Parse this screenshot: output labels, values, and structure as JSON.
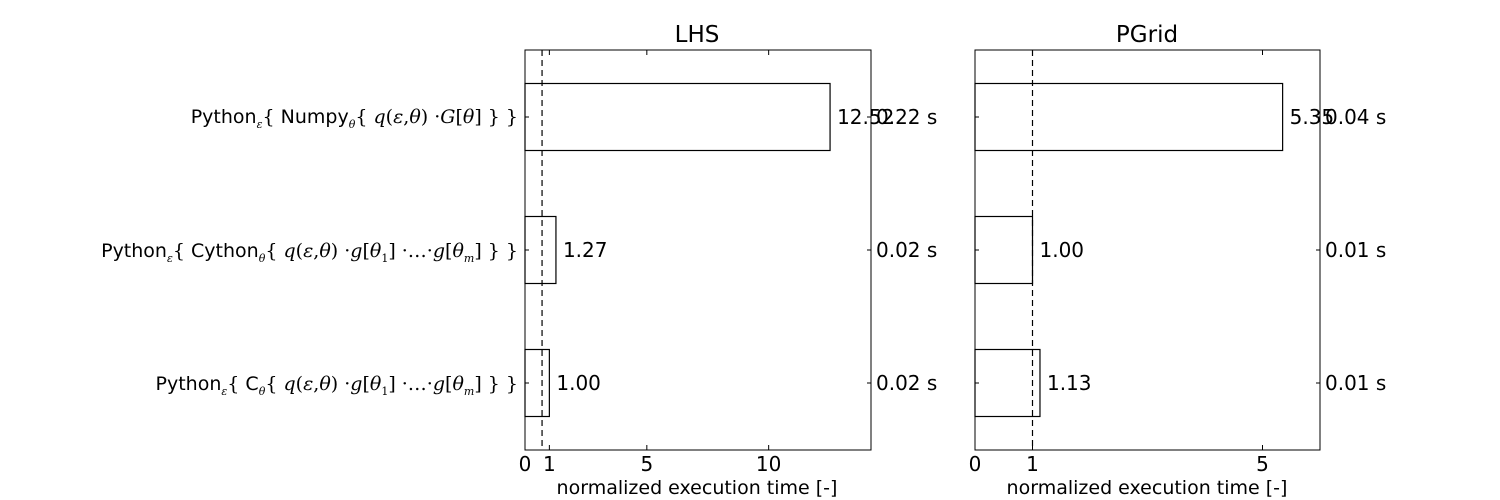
{
  "chart_data": [
    {
      "type": "bar",
      "orientation": "horizontal",
      "title": "LHS",
      "xlabel": "normalized execution time [-]",
      "categories": [
        "Python_ε{ Numpy_θ{ q(ε,θ) ·G[θ] } }",
        "Python_ε{ Cython_θ{ q(ε,θ) ·g[θ_1] ·…·g[θ_m] } }",
        "Python_ε{ C_θ{ q(ε,θ) ·g[θ_1] ·…·g[θ_m] } }"
      ],
      "values": [
        12.52,
        1.27,
        1.0
      ],
      "value_labels": [
        "12.52",
        "1.27",
        "1.00"
      ],
      "absolute_time_labels": [
        "0.22 s",
        "0.02 s",
        "0.02 s"
      ],
      "xlim": [
        0,
        14.2
      ],
      "xticks": [
        0,
        1,
        5,
        10
      ],
      "xtick_labels": [
        "0",
        "1",
        "5",
        "10"
      ],
      "reference_line": 0.7,
      "grid": false
    },
    {
      "type": "bar",
      "orientation": "horizontal",
      "title": "PGrid",
      "xlabel": "normalized execution time [-]",
      "categories": [
        "Python_ε{ Numpy_θ{ q(ε,θ) ·G[θ] } }",
        "Python_ε{ Cython_θ{ q(ε,θ) ·g[θ_1] ·…·g[θ_m] } }",
        "Python_ε{ C_θ{ q(ε,θ) ·g[θ_1] ·…·g[θ_m] } }"
      ],
      "values": [
        5.35,
        1.0,
        1.13
      ],
      "value_labels": [
        "5.35",
        "1.00",
        "1.13"
      ],
      "absolute_time_labels": [
        "0.04 s",
        "0.01 s",
        "0.01 s"
      ],
      "xlim": [
        0,
        6.0
      ],
      "xticks": [
        0,
        1,
        5
      ],
      "xtick_labels": [
        "0",
        "1",
        "5"
      ],
      "reference_line": 1.0,
      "grid": false
    }
  ],
  "colors": {
    "bar_fill": "#ffffff",
    "bar_edge": "#000000",
    "axes": "#000000"
  }
}
